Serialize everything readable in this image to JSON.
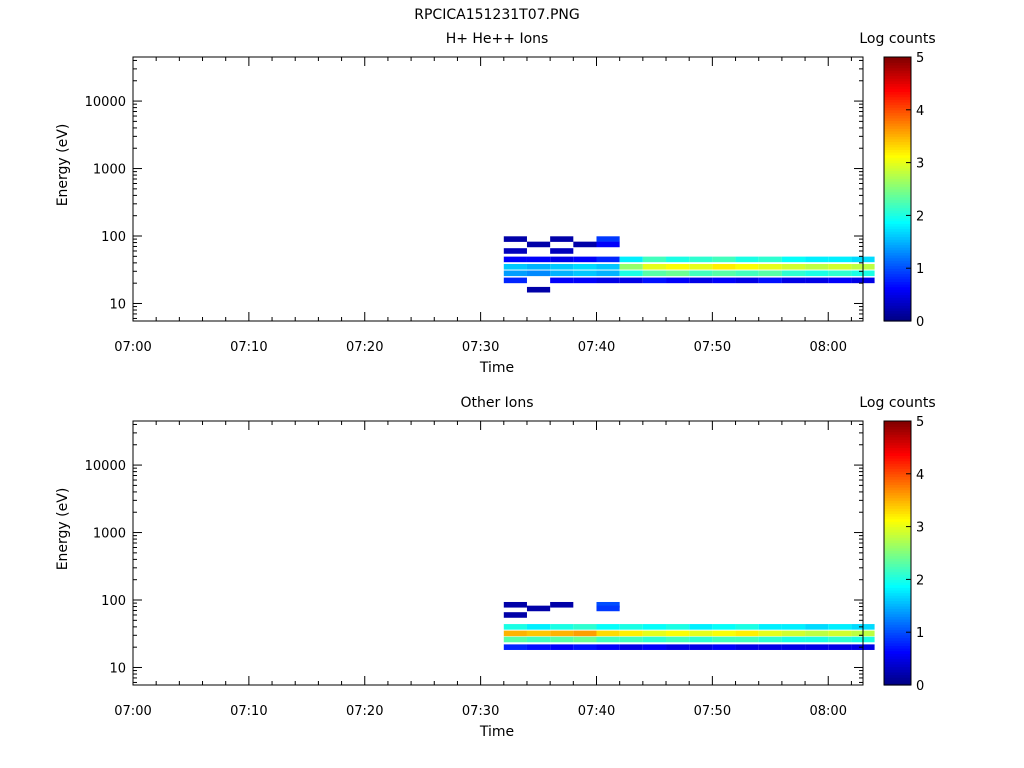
{
  "figure_title": "RPCICA151231T07.PNG",
  "chart_data": [
    {
      "type": "heatmap",
      "title": "H+ He++ Ions",
      "xlabel": "Time",
      "ylabel": "Energy (eV)",
      "yscale": "log",
      "x_ticks": [
        "07:00",
        "07:10",
        "07:20",
        "07:30",
        "07:40",
        "07:50",
        "08:00"
      ],
      "y_ticks": [
        "10",
        "100",
        "1000",
        "10000"
      ],
      "colorbar": {
        "label": "Log counts",
        "min": 0,
        "max": 5,
        "ticks": [
          "0",
          "1",
          "2",
          "3",
          "4",
          "5"
        ]
      },
      "data_start": "07:32",
      "data_end": "08:03",
      "core_band_eV": [
        22,
        45
      ],
      "peak_log_counts": 3.2,
      "cells": [
        [
          "07:32",
          35,
          1.6
        ],
        [
          "07:32",
          28,
          1.4
        ],
        [
          "07:32",
          22,
          0.8
        ],
        [
          "07:32",
          45,
          0.6
        ],
        [
          "07:32",
          60,
          0.3
        ],
        [
          "07:32",
          90,
          0.2
        ],
        [
          "07:34",
          35,
          1.5
        ],
        [
          "07:34",
          28,
          1.3
        ],
        [
          "07:34",
          45,
          0.6
        ],
        [
          "07:34",
          16,
          0.2
        ],
        [
          "07:34",
          75,
          0.2
        ],
        [
          "07:36",
          35,
          1.6
        ],
        [
          "07:36",
          28,
          1.5
        ],
        [
          "07:36",
          22,
          0.6
        ],
        [
          "07:36",
          45,
          0.5
        ],
        [
          "07:36",
          60,
          0.3
        ],
        [
          "07:36",
          90,
          0.2
        ],
        [
          "07:38",
          35,
          1.7
        ],
        [
          "07:38",
          28,
          1.6
        ],
        [
          "07:38",
          22,
          0.6
        ],
        [
          "07:38",
          45,
          0.6
        ],
        [
          "07:38",
          75,
          0.2
        ],
        [
          "07:40",
          35,
          1.6
        ],
        [
          "07:40",
          28,
          1.5
        ],
        [
          "07:40",
          45,
          0.8
        ],
        [
          "07:40",
          90,
          0.9
        ],
        [
          "07:40",
          75,
          0.6
        ],
        [
          "07:40",
          22,
          0.5
        ],
        [
          "07:42",
          35,
          2.6
        ],
        [
          "07:42",
          28,
          2.0
        ],
        [
          "07:42",
          45,
          1.8
        ],
        [
          "07:42",
          22,
          0.5
        ],
        [
          "07:44",
          35,
          3.0
        ],
        [
          "07:44",
          28,
          2.3
        ],
        [
          "07:44",
          45,
          2.2
        ],
        [
          "07:44",
          22,
          0.7
        ],
        [
          "07:46",
          35,
          3.1
        ],
        [
          "07:46",
          28,
          2.4
        ],
        [
          "07:46",
          45,
          2.0
        ],
        [
          "07:46",
          22,
          0.6
        ],
        [
          "07:48",
          35,
          3.0
        ],
        [
          "07:48",
          28,
          2.2
        ],
        [
          "07:48",
          45,
          2.1
        ],
        [
          "07:48",
          22,
          0.5
        ],
        [
          "07:50",
          35,
          3.2
        ],
        [
          "07:50",
          28,
          2.3
        ],
        [
          "07:50",
          45,
          2.2
        ],
        [
          "07:50",
          22,
          0.6
        ],
        [
          "07:52",
          35,
          3.1
        ],
        [
          "07:52",
          28,
          2.2
        ],
        [
          "07:52",
          45,
          2.0
        ],
        [
          "07:52",
          22,
          0.5
        ],
        [
          "07:54",
          35,
          3.0
        ],
        [
          "07:54",
          28,
          2.3
        ],
        [
          "07:54",
          45,
          2.1
        ],
        [
          "07:54",
          22,
          0.7
        ],
        [
          "07:56",
          35,
          2.9
        ],
        [
          "07:56",
          28,
          2.1
        ],
        [
          "07:56",
          45,
          1.9
        ],
        [
          "07:56",
          22,
          0.5
        ],
        [
          "07:58",
          35,
          2.8
        ],
        [
          "07:58",
          28,
          2.0
        ],
        [
          "07:58",
          45,
          1.8
        ],
        [
          "07:58",
          22,
          0.5
        ],
        [
          "08:00",
          35,
          2.9
        ],
        [
          "08:00",
          28,
          2.1
        ],
        [
          "08:00",
          45,
          1.8
        ],
        [
          "08:00",
          22,
          0.6
        ],
        [
          "08:02",
          35,
          2.8
        ],
        [
          "08:02",
          28,
          2.0
        ],
        [
          "08:02",
          45,
          1.7
        ],
        [
          "08:02",
          22,
          0.5
        ]
      ]
    },
    {
      "type": "heatmap",
      "title": "Other Ions",
      "xlabel": "Time",
      "ylabel": "Energy (eV)",
      "yscale": "log",
      "x_ticks": [
        "07:00",
        "07:10",
        "07:20",
        "07:30",
        "07:40",
        "07:50",
        "08:00"
      ],
      "y_ticks": [
        "10",
        "100",
        "1000",
        "10000"
      ],
      "colorbar": {
        "label": "Log counts",
        "min": 0,
        "max": 5,
        "ticks": [
          "0",
          "1",
          "2",
          "3",
          "4",
          "5"
        ]
      },
      "data_start": "07:32",
      "data_end": "08:03",
      "core_band_eV": [
        20,
        45
      ],
      "peak_log_counts": 3.6,
      "cells": [
        [
          "07:32",
          32,
          3.5
        ],
        [
          "07:32",
          26,
          2.3
        ],
        [
          "07:32",
          40,
          2.0
        ],
        [
          "07:32",
          20,
          0.8
        ],
        [
          "07:32",
          60,
          0.2
        ],
        [
          "07:32",
          85,
          0.2
        ],
        [
          "07:34",
          32,
          3.4
        ],
        [
          "07:34",
          26,
          2.2
        ],
        [
          "07:34",
          40,
          1.8
        ],
        [
          "07:34",
          20,
          0.7
        ],
        [
          "07:34",
          75,
          0.2
        ],
        [
          "07:36",
          32,
          3.5
        ],
        [
          "07:36",
          26,
          2.3
        ],
        [
          "07:36",
          40,
          2.0
        ],
        [
          "07:36",
          20,
          0.6
        ],
        [
          "07:36",
          85,
          0.2
        ],
        [
          "07:38",
          32,
          3.6
        ],
        [
          "07:38",
          26,
          2.4
        ],
        [
          "07:38",
          40,
          2.1
        ],
        [
          "07:38",
          20,
          0.7
        ],
        [
          "07:40",
          32,
          3.3
        ],
        [
          "07:40",
          26,
          2.2
        ],
        [
          "07:40",
          40,
          1.9
        ],
        [
          "07:40",
          85,
          1.0
        ],
        [
          "07:40",
          75,
          0.9
        ],
        [
          "07:40",
          20,
          0.6
        ],
        [
          "07:42",
          32,
          3.2
        ],
        [
          "07:42",
          26,
          2.2
        ],
        [
          "07:42",
          40,
          2.0
        ],
        [
          "07:42",
          20,
          0.5
        ],
        [
          "07:44",
          32,
          3.0
        ],
        [
          "07:44",
          26,
          2.1
        ],
        [
          "07:44",
          40,
          1.9
        ],
        [
          "07:44",
          20,
          0.6
        ],
        [
          "07:46",
          32,
          3.1
        ],
        [
          "07:46",
          26,
          2.2
        ],
        [
          "07:46",
          40,
          2.0
        ],
        [
          "07:46",
          20,
          0.5
        ],
        [
          "07:48",
          32,
          3.0
        ],
        [
          "07:48",
          26,
          2.1
        ],
        [
          "07:48",
          40,
          1.8
        ],
        [
          "07:48",
          20,
          0.5
        ],
        [
          "07:50",
          32,
          3.1
        ],
        [
          "07:50",
          26,
          2.2
        ],
        [
          "07:50",
          40,
          1.9
        ],
        [
          "07:50",
          20,
          0.6
        ],
        [
          "07:52",
          32,
          3.2
        ],
        [
          "07:52",
          26,
          2.2
        ],
        [
          "07:52",
          40,
          2.0
        ],
        [
          "07:52",
          20,
          0.5
        ],
        [
          "07:54",
          32,
          3.0
        ],
        [
          "07:54",
          26,
          2.1
        ],
        [
          "07:54",
          40,
          1.8
        ],
        [
          "07:54",
          20,
          0.5
        ],
        [
          "07:56",
          32,
          2.9
        ],
        [
          "07:56",
          26,
          2.0
        ],
        [
          "07:56",
          40,
          1.8
        ],
        [
          "07:56",
          20,
          0.5
        ],
        [
          "07:58",
          32,
          2.8
        ],
        [
          "07:58",
          26,
          2.0
        ],
        [
          "07:58",
          40,
          1.7
        ],
        [
          "07:58",
          20,
          0.5
        ],
        [
          "08:00",
          32,
          2.9
        ],
        [
          "08:00",
          26,
          2.1
        ],
        [
          "08:00",
          40,
          1.8
        ],
        [
          "08:00",
          20,
          0.5
        ],
        [
          "08:02",
          32,
          2.8
        ],
        [
          "08:02",
          26,
          2.0
        ],
        [
          "08:02",
          40,
          1.7
        ],
        [
          "08:02",
          20,
          0.5
        ]
      ]
    }
  ]
}
